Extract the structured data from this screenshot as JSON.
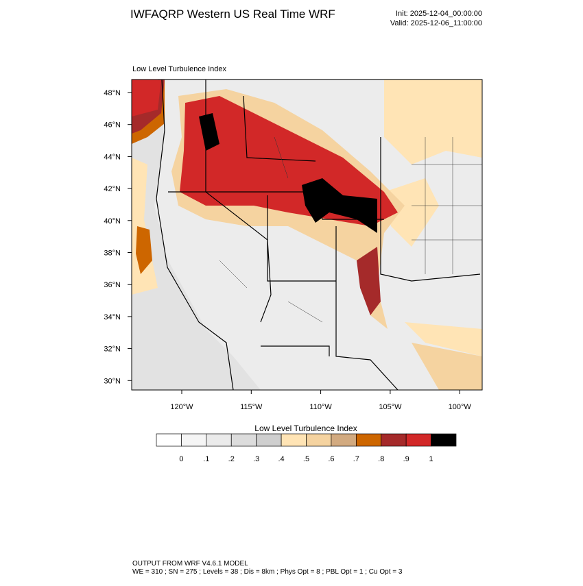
{
  "header": {
    "title": "IWFAQRP Western US Real Time WRF",
    "init": "Init: 2025-12-04_00:00:00",
    "valid": "Valid: 2025-12-06_11:00:00"
  },
  "map": {
    "title": "Low Level Turbulence Index",
    "lat_labels": [
      "48°N",
      "46°N",
      "44°N",
      "42°N",
      "40°N",
      "38°N",
      "36°N",
      "34°N",
      "32°N",
      "30°N"
    ],
    "lon_labels": [
      "120°W",
      "115°W",
      "110°W",
      "105°W",
      "100°W"
    ]
  },
  "colorbar": {
    "title": "Low Level Turbulence Index",
    "colors": [
      "#ffffff",
      "#f5f5f5",
      "#ebebeb",
      "#dcdcdc",
      "#cfcfcf",
      "#ffe4b5",
      "#f5d3a0",
      "#d2aa80",
      "#cd6600",
      "#a52a2a",
      "#d22828",
      "#000000"
    ],
    "ticks": [
      0,
      {
        "value": 0.1,
        "label": ".1"
      },
      {
        "value": 0.2,
        "label": ".2"
      },
      {
        "value": 0.3,
        "label": ".3"
      },
      {
        "value": 0.4,
        "label": ".4"
      },
      {
        "value": 0.5,
        "label": ".5"
      },
      {
        "value": 0.6,
        "label": ".6"
      },
      {
        "value": 0.7,
        "label": ".7"
      },
      {
        "value": 0.8,
        "label": ".8"
      },
      {
        "value": 0.9,
        "label": ".9"
      },
      1
    ]
  },
  "footer": {
    "line1": "OUTPUT FROM WRF V4.6.1 MODEL",
    "line2": "WE = 310 ; SN = 275 ; Levels = 38 ; Dis = 8km ; Phys Opt = 8 ; PBL Opt = 1 ; Cu Opt = 3"
  }
}
